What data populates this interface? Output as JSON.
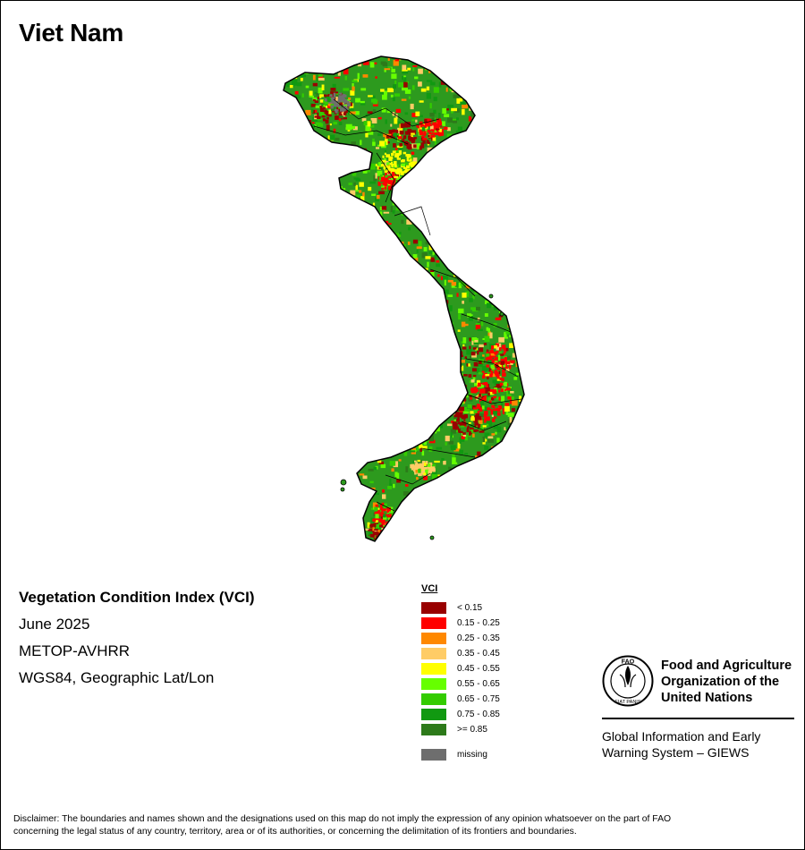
{
  "map": {
    "title": "Viet Nam",
    "info": {
      "index_title": "Vegetation Condition Index (VCI)",
      "date": "June 2025",
      "sensor": "METOP-AVHRR",
      "projection": "WGS84, Geographic Lat/Lon"
    },
    "legend": {
      "title": "VCI",
      "classes": [
        {
          "label": "< 0.15",
          "color": "#990000"
        },
        {
          "label": "0.15 - 0.25",
          "color": "#ff0000"
        },
        {
          "label": "0.25 - 0.35",
          "color": "#ff8800"
        },
        {
          "label": "0.35 - 0.45",
          "color": "#ffcc66"
        },
        {
          "label": "0.45 - 0.55",
          "color": "#ffff00"
        },
        {
          "label": "0.55 - 0.65",
          "color": "#66ff00"
        },
        {
          "label": "0.65 - 0.75",
          "color": "#33cc00"
        },
        {
          "label": "0.75 - 0.85",
          "color": "#119911"
        },
        {
          "label": ">= 0.85",
          "color": "#2d7a1a"
        },
        {
          "label": "missing",
          "color": "#6e6e6e"
        }
      ]
    },
    "organization": {
      "logo_letters": "FAO",
      "logo_motto": "FIAT PANIS",
      "name_lines": [
        "Food and Agriculture",
        "Organization of the",
        "United Nations"
      ],
      "system_lines": [
        "Global Information and Early",
        "Warning System – GIEWS"
      ]
    },
    "disclaimer_lines": [
      "Disclaimer: The boundaries and names shown and the designations used on this map do not imply the expression of any opinion whatsoever on the part of FAO",
      "concerning the legal status of any country, territory, area or of its authorities, or concerning the delimitation of its frontiers and boundaries."
    ]
  }
}
